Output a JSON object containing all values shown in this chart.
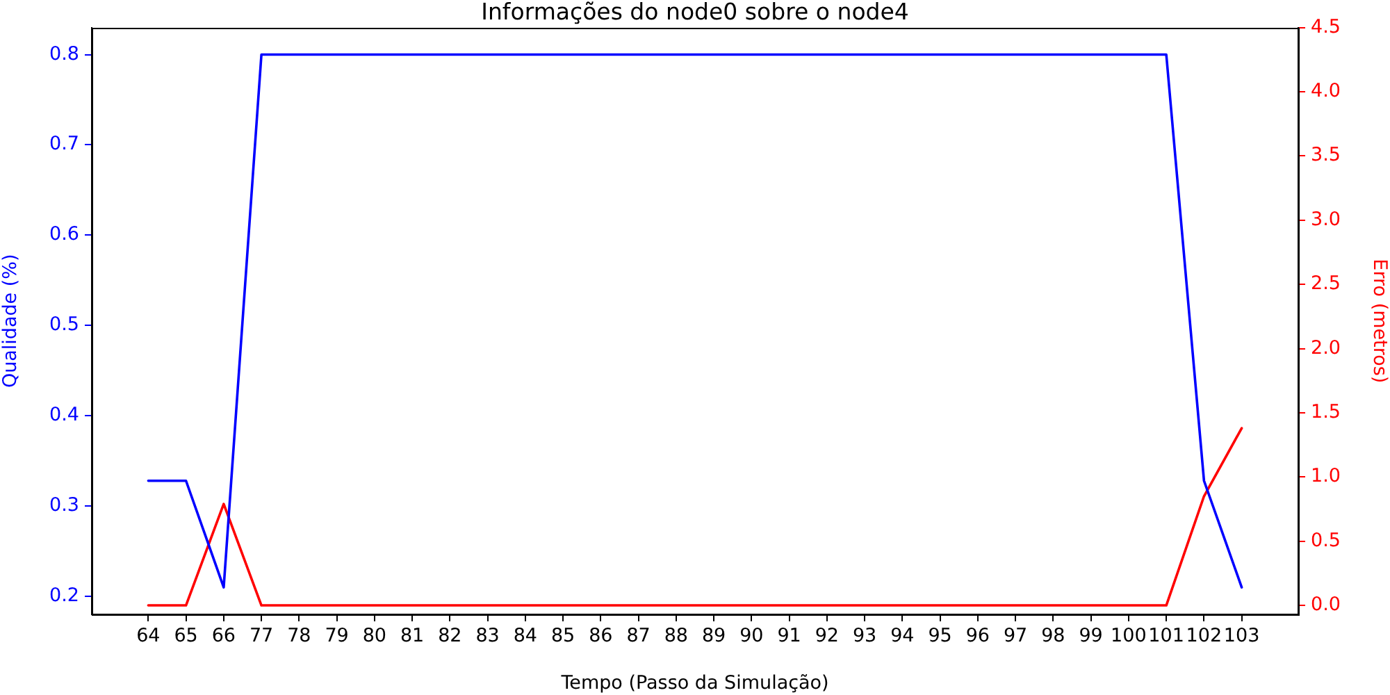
{
  "chart_data": {
    "type": "line",
    "title": "Informações do node0 sobre o node4",
    "xlabel": "Tempo (Passo da Simulação)",
    "ylabel": "Qualidade (%)",
    "y2label": "Erro (metros)",
    "categories": [
      "64",
      "65",
      "66",
      "77",
      "78",
      "79",
      "80",
      "81",
      "82",
      "83",
      "84",
      "85",
      "86",
      "87",
      "88",
      "89",
      "90",
      "91",
      "92",
      "93",
      "94",
      "95",
      "96",
      "97",
      "98",
      "99",
      "100",
      "101",
      "102",
      "103"
    ],
    "series": [
      {
        "color": "#0000ff",
        "values": [
          0.328,
          0.328,
          0.21,
          0.8,
          0.8,
          0.8,
          0.8,
          0.8,
          0.8,
          0.8,
          0.8,
          0.8,
          0.8,
          0.8,
          0.8,
          0.8,
          0.8,
          0.8,
          0.8,
          0.8,
          0.8,
          0.8,
          0.8,
          0.8,
          0.8,
          0.8,
          0.8,
          0.8,
          0.328,
          0.21
        ]
      },
      {
        "color": "#ff0000",
        "axis": "y2",
        "values": [
          0,
          0,
          0.79,
          0,
          0,
          0,
          0,
          0,
          0,
          0,
          0,
          0,
          0,
          0,
          0,
          0,
          0,
          0,
          0,
          0,
          0,
          0,
          0,
          0,
          0,
          0,
          0,
          0,
          0.85,
          1.38
        ]
      }
    ],
    "ylim": [
      0.18,
      0.83
    ],
    "yticks": [
      0.2,
      0.3,
      0.4,
      0.5,
      0.6,
      0.7,
      0.8
    ],
    "y2lim": [
      -0.07,
      4.5
    ],
    "y2ticks": [
      {
        "value": 0,
        "label": "0.0"
      },
      {
        "value": 0.5,
        "label": "0.5"
      },
      {
        "value": 1,
        "label": "1.0"
      },
      {
        "value": 1.5,
        "label": "1.5"
      },
      {
        "value": 2,
        "label": "2.0"
      },
      {
        "value": 2.5,
        "label": "2.5"
      },
      {
        "value": 3,
        "label": "3.0"
      },
      {
        "value": 3.5,
        "label": "3.5"
      },
      {
        "value": 4,
        "label": "4.0"
      },
      {
        "value": 4.5,
        "label": "4.5"
      }
    ]
  }
}
